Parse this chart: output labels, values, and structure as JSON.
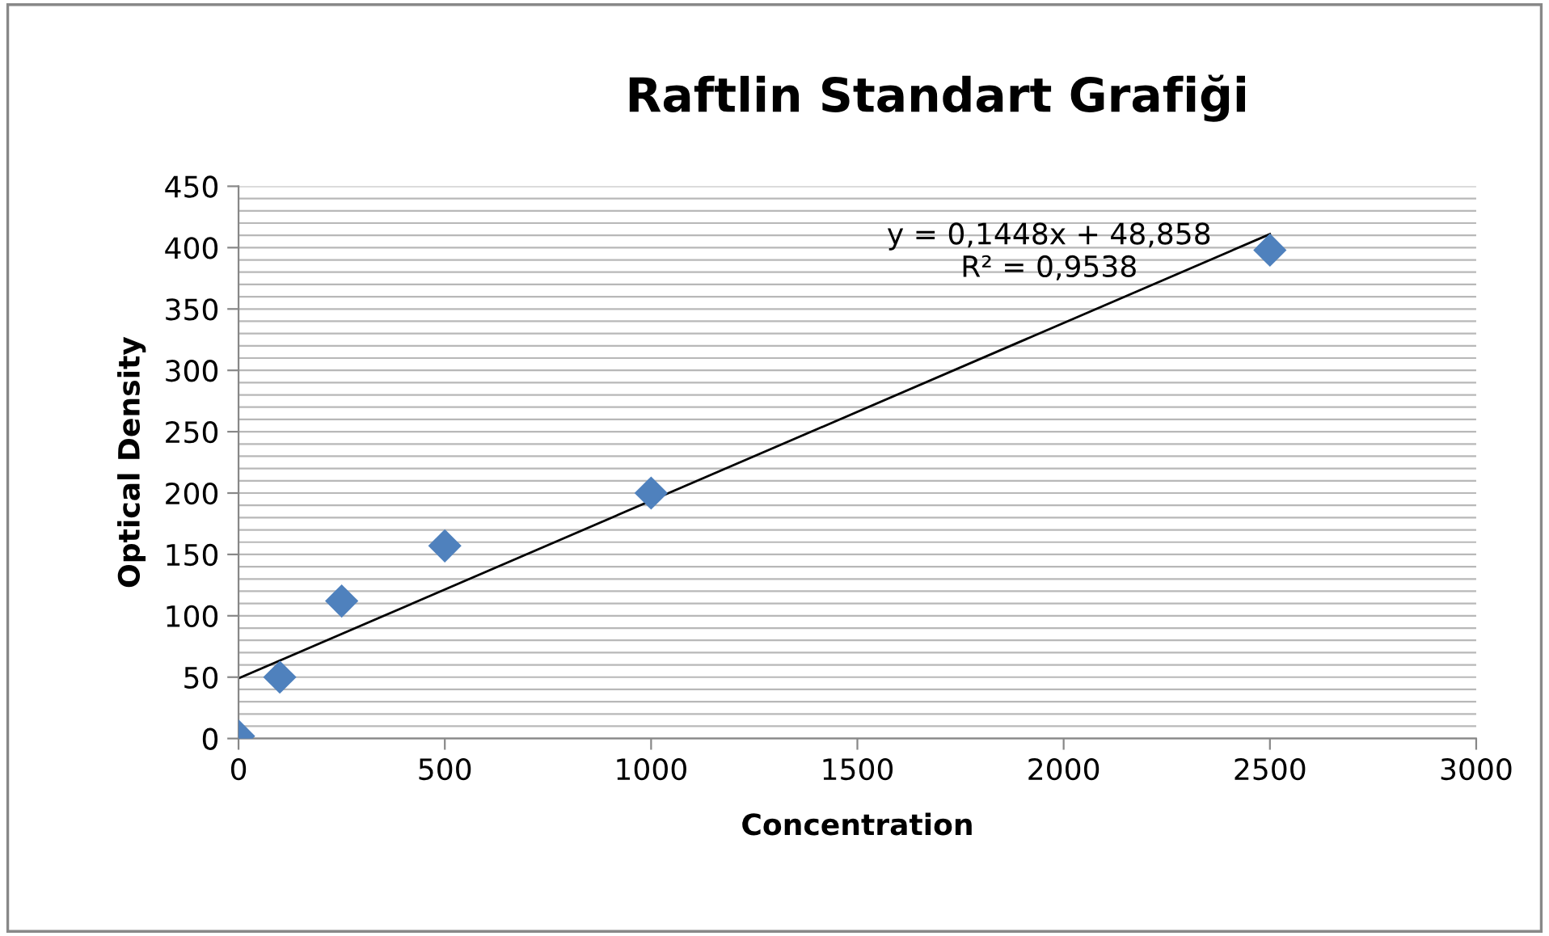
{
  "chart_data": {
    "type": "scatter",
    "title": "Raftlin Standart Grafiği",
    "xlabel": "Concentration",
    "ylabel": "Optical Density",
    "marker": "diamond",
    "grid": "y",
    "legend": false,
    "xlim": [
      0,
      3000
    ],
    "xticks": [
      0,
      500,
      1000,
      1500,
      2000,
      2500,
      3000
    ],
    "ylim": [
      0,
      450
    ],
    "yticks": [
      0,
      {
        "value": 10,
        "label": null
      },
      {
        "value": 20,
        "label": null
      },
      {
        "value": 30,
        "label": null
      },
      {
        "value": 40,
        "label": null
      },
      50,
      {
        "value": 60,
        "label": null
      },
      {
        "value": 70,
        "label": null
      },
      {
        "value": 80,
        "label": null
      },
      {
        "value": 90,
        "label": null
      },
      100,
      {
        "value": 110,
        "label": null
      },
      {
        "value": 120,
        "label": null
      },
      {
        "value": 130,
        "label": null
      },
      {
        "value": 140,
        "label": null
      },
      150,
      {
        "value": 160,
        "label": null
      },
      {
        "value": 170,
        "label": null
      },
      {
        "value": 180,
        "label": null
      },
      {
        "value": 190,
        "label": null
      },
      200,
      {
        "value": 210,
        "label": null
      },
      {
        "value": 220,
        "label": null
      },
      {
        "value": 230,
        "label": null
      },
      {
        "value": 240,
        "label": null
      },
      250,
      {
        "value": 260,
        "label": null
      },
      {
        "value": 270,
        "label": null
      },
      {
        "value": 280,
        "label": null
      },
      {
        "value": 290,
        "label": null
      },
      300,
      {
        "value": 310,
        "label": null
      },
      {
        "value": 320,
        "label": null
      },
      {
        "value": 330,
        "label": null
      },
      {
        "value": 340,
        "label": null
      },
      350,
      {
        "value": 360,
        "label": null
      },
      {
        "value": 370,
        "label": null
      },
      {
        "value": 380,
        "label": null
      },
      {
        "value": 390,
        "label": null
      },
      400,
      {
        "value": 410,
        "label": null
      },
      {
        "value": 420,
        "label": null
      },
      {
        "value": 430,
        "label": null
      },
      {
        "value": 440,
        "label": null
      },
      450
    ],
    "series": [
      {
        "color": "#4f81bd",
        "x": [
          0,
          100,
          250,
          500,
          1000,
          2500
        ],
        "values": [
          2,
          50,
          112,
          157,
          200,
          398
        ]
      },
      {
        "type": "line",
        "color": "#000000",
        "marker": "none",
        "line_style": "solid",
        "x": [
          0,
          2500
        ],
        "values": [
          49,
          411
        ]
      }
    ],
    "annotations": [
      "y = 0,1448x + 48,858\nR² = 0,9538"
    ]
  }
}
